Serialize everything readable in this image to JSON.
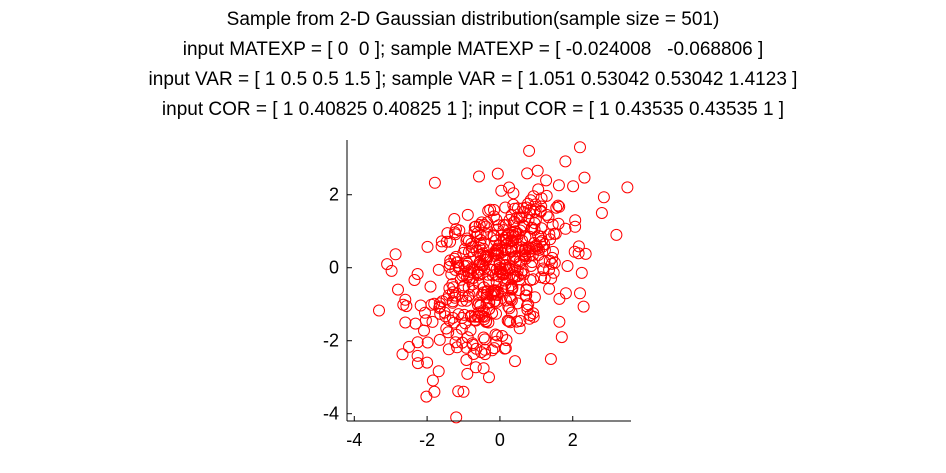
{
  "chart_data": {
    "type": "scatter",
    "title_lines": [
      "Sample from 2-D Gaussian distribution(sample size = 501)",
      "input MATEXP = [ 0  0 ]; sample MATEXP = [ -0.024008   -0.068806 ]",
      "input VAR = [ 1 0.5 0.5 1.5 ]; sample VAR = [ 1.051 0.53042 0.53042 1.4123 ]",
      "input COR = [ 1 0.40825 0.40825 1 ]; input COR = [ 1 0.43535 0.43535 1 ]"
    ],
    "xlabel": "",
    "ylabel": "",
    "xlim": [
      -4.2,
      3.6
    ],
    "ylim": [
      -4.2,
      3.5
    ],
    "xticks": [
      -4,
      -2,
      0,
      2
    ],
    "yticks": [
      -4,
      -2,
      0,
      2
    ],
    "grid": false,
    "marker": "circle-open",
    "marker_color": "#ff0000",
    "sample_size": 501,
    "sample_mean": [
      -0.024008,
      -0.068806
    ],
    "sample_cov": [
      1.051,
      0.53042,
      0.53042,
      1.4123
    ],
    "outlier_points": [
      {
        "x": 3.5,
        "y": 2.2
      },
      {
        "x": 2.2,
        "y": 3.3
      },
      {
        "x": 0.8,
        "y": 3.2
      },
      {
        "x": -3.1,
        "y": 0.1
      },
      {
        "x": -1.2,
        "y": -4.1
      },
      {
        "x": -1.8,
        "y": -3.4
      },
      {
        "x": 3.2,
        "y": 0.9
      },
      {
        "x": 2.8,
        "y": 1.5
      },
      {
        "x": 1.4,
        "y": -2.5
      },
      {
        "x": -2.8,
        "y": -0.6
      },
      {
        "x": -2.6,
        "y": -1.5
      },
      {
        "x": -2.0,
        "y": -2.6
      },
      {
        "x": -0.3,
        "y": -3.0
      },
      {
        "x": -1.0,
        "y": -3.4
      },
      {
        "x": 2.2,
        "y": -0.7
      },
      {
        "x": 1.7,
        "y": -1.9
      }
    ]
  }
}
